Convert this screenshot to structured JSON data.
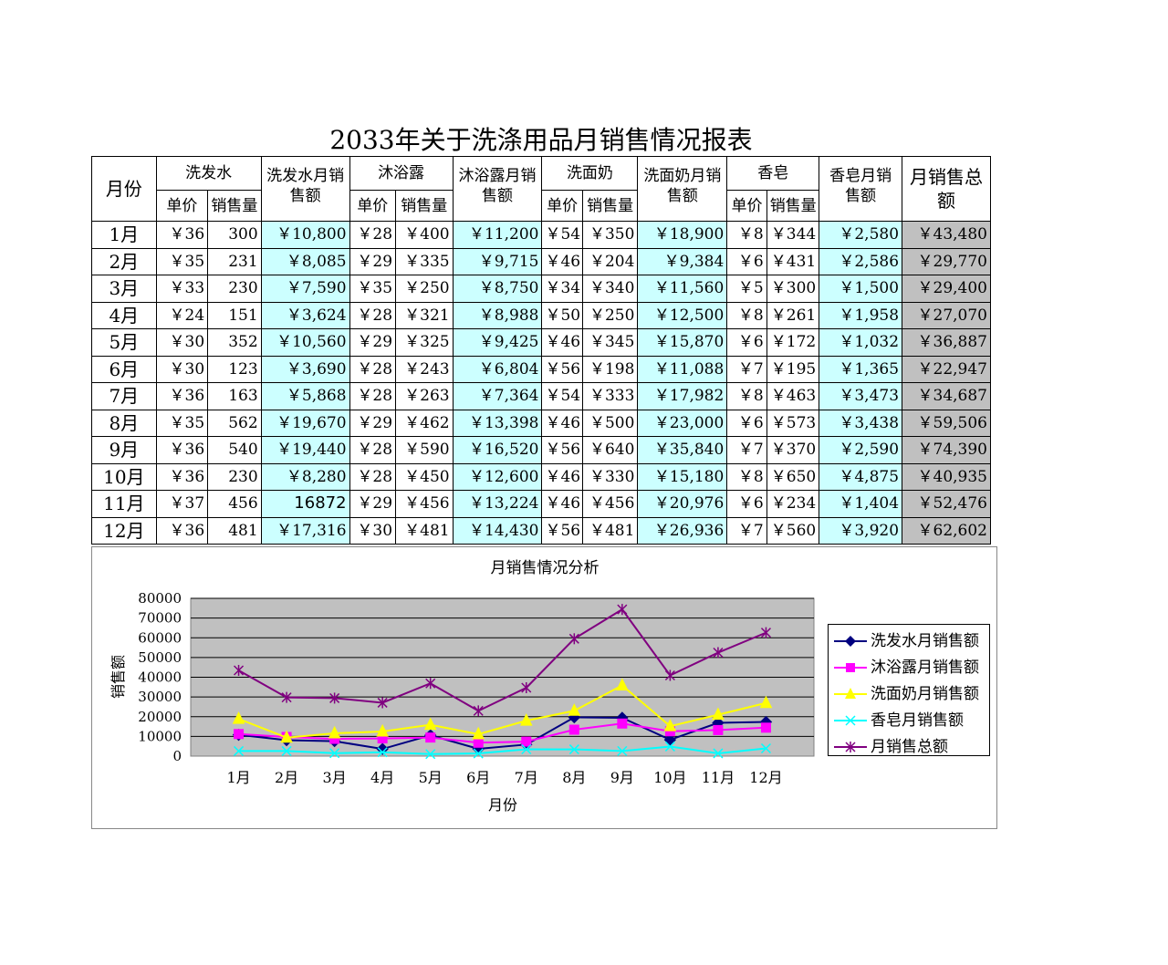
{
  "title": "2033年关于洗涤用品月销售情况报表",
  "headers": {
    "month": "月份",
    "shampoo": "洗发水",
    "shampoo_sales": "洗发水月销售额",
    "bodywash": "沐浴露",
    "bodywash_sales": "沐浴露月销售额",
    "cleanser": "洗面奶",
    "cleanser_sales": "洗面奶月销售额",
    "soap": "香皂",
    "soap_sales": "香皂月销售额",
    "total": "月销售总额",
    "unit_price": "单价",
    "quantity": "销售量"
  },
  "rows": [
    {
      "month": "1月",
      "sp": "￥36",
      "sq": "300",
      "ss": "￥10,800",
      "bp": "￥28",
      "bq": "￥400",
      "bs": "￥11,200",
      "cp": "￥54",
      "cq": "￥350",
      "cs": "￥18,900",
      "pp": "￥8",
      "pq": "￥344",
      "ps": "￥2,580",
      "total": "￥43,480"
    },
    {
      "month": "2月",
      "sp": "￥35",
      "sq": "231",
      "ss": "￥8,085",
      "bp": "￥29",
      "bq": "￥335",
      "bs": "￥9,715",
      "cp": "￥46",
      "cq": "￥204",
      "cs": "￥9,384",
      "pp": "￥6",
      "pq": "￥431",
      "ps": "￥2,586",
      "total": "￥29,770"
    },
    {
      "month": "3月",
      "sp": "￥33",
      "sq": "230",
      "ss": "￥7,590",
      "bp": "￥35",
      "bq": "￥250",
      "bs": "￥8,750",
      "cp": "￥34",
      "cq": "￥340",
      "cs": "￥11,560",
      "pp": "￥5",
      "pq": "￥300",
      "ps": "￥1,500",
      "total": "￥29,400"
    },
    {
      "month": "4月",
      "sp": "￥24",
      "sq": "151",
      "ss": "￥3,624",
      "bp": "￥28",
      "bq": "￥321",
      "bs": "￥8,988",
      "cp": "￥50",
      "cq": "￥250",
      "cs": "￥12,500",
      "pp": "￥8",
      "pq": "￥261",
      "ps": "￥1,958",
      "total": "￥27,070"
    },
    {
      "month": "5月",
      "sp": "￥30",
      "sq": "352",
      "ss": "￥10,560",
      "bp": "￥29",
      "bq": "￥325",
      "bs": "￥9,425",
      "cp": "￥46",
      "cq": "￥345",
      "cs": "￥15,870",
      "pp": "￥6",
      "pq": "￥172",
      "ps": "￥1,032",
      "total": "￥36,887"
    },
    {
      "month": "6月",
      "sp": "￥30",
      "sq": "123",
      "ss": "￥3,690",
      "bp": "￥28",
      "bq": "￥243",
      "bs": "￥6,804",
      "cp": "￥56",
      "cq": "￥198",
      "cs": "￥11,088",
      "pp": "￥7",
      "pq": "￥195",
      "ps": "￥1,365",
      "total": "￥22,947"
    },
    {
      "month": "7月",
      "sp": "￥36",
      "sq": "163",
      "ss": "￥5,868",
      "bp": "￥28",
      "bq": "￥263",
      "bs": "￥7,364",
      "cp": "￥54",
      "cq": "￥333",
      "cs": "￥17,982",
      "pp": "￥8",
      "pq": "￥463",
      "ps": "￥3,473",
      "total": "￥34,687"
    },
    {
      "month": "8月",
      "sp": "￥35",
      "sq": "562",
      "ss": "￥19,670",
      "bp": "￥29",
      "bq": "￥462",
      "bs": "￥13,398",
      "cp": "￥46",
      "cq": "￥500",
      "cs": "￥23,000",
      "pp": "￥6",
      "pq": "￥573",
      "ps": "￥3,438",
      "total": "￥59,506"
    },
    {
      "month": "9月",
      "sp": "￥36",
      "sq": "540",
      "ss": "￥19,440",
      "bp": "￥28",
      "bq": "￥590",
      "bs": "￥16,520",
      "cp": "￥56",
      "cq": "￥640",
      "cs": "￥35,840",
      "pp": "￥7",
      "pq": "￥370",
      "ps": "￥2,590",
      "total": "￥74,390"
    },
    {
      "month": "10月",
      "sp": "￥36",
      "sq": "230",
      "ss": "￥8,280",
      "bp": "￥28",
      "bq": "￥450",
      "bs": "￥12,600",
      "cp": "￥46",
      "cq": "￥330",
      "cs": "￥15,180",
      "pp": "￥8",
      "pq": "￥650",
      "ps": "￥4,875",
      "total": "￥40,935"
    },
    {
      "month": "11月",
      "sp": "￥37",
      "sq": "456",
      "ss": "16872",
      "bp": "￥29",
      "bq": "￥456",
      "bs": "￥13,224",
      "cp": "￥46",
      "cq": "￥456",
      "cs": "￥20,976",
      "pp": "￥6",
      "pq": "￥234",
      "ps": "￥1,404",
      "total": "￥52,476"
    },
    {
      "month": "12月",
      "sp": "￥36",
      "sq": "481",
      "ss": "￥17,316",
      "bp": "￥30",
      "bq": "￥481",
      "bs": "￥14,430",
      "cp": "￥56",
      "cq": "￥481",
      "cs": "￥26,936",
      "pp": "￥7",
      "pq": "￥560",
      "ps": "￥3,920",
      "total": "￥62,602"
    }
  ],
  "chart_data": {
    "type": "line",
    "title": "月销售情况分析",
    "xlabel": "月份",
    "ylabel": "销售额",
    "categories": [
      "1月",
      "2月",
      "3月",
      "4月",
      "5月",
      "6月",
      "7月",
      "8月",
      "9月",
      "10月",
      "11月",
      "12月"
    ],
    "ylim": [
      0,
      80000
    ],
    "yticks": [
      "0",
      "10000",
      "20000",
      "30000",
      "40000",
      "50000",
      "60000",
      "70000",
      "80000"
    ],
    "grid": true,
    "legend_position": "right",
    "series": [
      {
        "name": "洗发水月销售额",
        "color": "#000080",
        "marker": "diamond",
        "values": [
          10800,
          8085,
          7590,
          3624,
          10560,
          3690,
          5868,
          19670,
          19440,
          8280,
          16872,
          17316
        ]
      },
      {
        "name": "沐浴露月销售额",
        "color": "#ff00ff",
        "marker": "square",
        "values": [
          11200,
          9715,
          8750,
          8988,
          9425,
          6804,
          7364,
          13398,
          16520,
          12600,
          13224,
          14430
        ]
      },
      {
        "name": "洗面奶月销售额",
        "color": "#ffff00",
        "marker": "triangle",
        "values": [
          18900,
          9384,
          11560,
          12500,
          15870,
          11088,
          17982,
          23000,
          35840,
          15180,
          20976,
          26936
        ]
      },
      {
        "name": "香皂月销售额",
        "color": "#00ffff",
        "marker": "x",
        "values": [
          2580,
          2586,
          1500,
          1958,
          1032,
          1365,
          3473,
          3438,
          2590,
          4875,
          1404,
          3920
        ]
      },
      {
        "name": "月销售总额",
        "color": "#800080",
        "marker": "star",
        "values": [
          43480,
          29770,
          29400,
          27070,
          36887,
          22947,
          34687,
          59506,
          74390,
          40935,
          52476,
          62602
        ]
      }
    ]
  }
}
